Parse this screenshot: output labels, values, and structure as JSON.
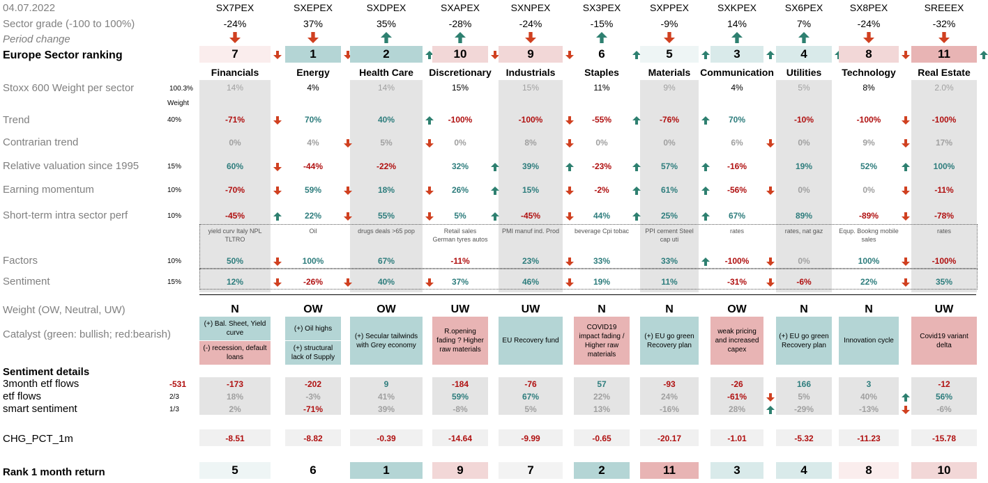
{
  "date": "04.07.2022",
  "labels": {
    "sector_grade": "Sector grade (-100 to 100%)",
    "period_change": "Period change",
    "europe_ranking": "Europe Sector ranking",
    "stoxx_weight": "Stoxx 600 Weight per sector",
    "stoxx_total": "100.3%",
    "weight_hdr": "Weight",
    "trend": "Trend",
    "contrarian": "Contrarian trend",
    "rel_val": "Relative valuation since 1995",
    "earn_mom": "Earning momentum",
    "short_term": "Short-term intra sector perf",
    "factors": "Factors",
    "sentiment": "Sentiment",
    "weight_ow": "Weight (OW, Neutral, UW)",
    "catalyst": "Catalyst (green: bullish; red:bearish)",
    "sent_details": "Sentiment details",
    "etf3m": "3month etf flows",
    "etf3m_total": "-531",
    "etf": "etf flows",
    "etf_w": "2/3",
    "smart": "smart sentiment",
    "smart_w": "1/3",
    "chg": "CHG_PCT_1m",
    "rank1m": "Rank 1 month return"
  },
  "weights": {
    "trend": "40%",
    "rel_val": "15%",
    "earn_mom": "10%",
    "short_term": "10%",
    "factors": "10%",
    "sentiment": "15%"
  },
  "sectors": [
    {
      "code": "SX7PEX",
      "grade": "-24%",
      "chg": "down",
      "rank": "7",
      "rank_arrow": "down",
      "name": "Financials",
      "stoxx": "14%",
      "trend": "-71%",
      "trend_a": "down",
      "contr": "0%",
      "contr_a": "",
      "relval": "60%",
      "relval_a": "down",
      "earn": "-70%",
      "earn_a": "down",
      "short": "-45%",
      "short_a": "up",
      "fact_txt": "yield curv Italy NPL TLTRO",
      "fact": "50%",
      "fact_a": "down",
      "sent": "12%",
      "sent_a": "down",
      "weight": "N",
      "cat_top": "(+) Bal. Sheet, Yield curve",
      "cat_bot": "(-) recession, default loans",
      "etf3m": "-173",
      "etf": "18%",
      "etf_a": "",
      "smart": "2%",
      "smart_a": "",
      "chg1m": "-8.51",
      "rank1m": "5"
    },
    {
      "code": "SXEPEX",
      "grade": "37%",
      "chg": "down",
      "rank": "1",
      "rank_arrow": "",
      "name": "Energy",
      "stoxx": "4%",
      "trend": "70%",
      "trend_a": "",
      "contr": "4%",
      "contr_a": "down",
      "relval": "-44%",
      "relval_a": "",
      "earn": "59%",
      "earn_a": "down",
      "short": "22%",
      "short_a": "down",
      "fact_txt": "Oil",
      "fact": "100%",
      "fact_a": "",
      "sent": "-26%",
      "sent_a": "down",
      "weight": "OW",
      "cat_top": "(+) Oil highs",
      "cat_bot": "(+) structural lack of  Supply",
      "etf3m": "-202",
      "etf": "-3%",
      "etf_a": "",
      "smart": "-71%",
      "smart_a": "",
      "chg1m": "-8.82",
      "rank1m": "6"
    },
    {
      "code": "SXDPEX",
      "grade": "35%",
      "chg": "up",
      "rank": "2",
      "rank_arrow": "",
      "name": "Health Care",
      "stoxx": "14%",
      "trend": "40%",
      "trend_a": "up",
      "contr": "5%",
      "contr_a": "down",
      "relval": "-22%",
      "relval_a": "",
      "earn": "18%",
      "earn_a": "down",
      "short": "55%",
      "short_a": "down",
      "fact_txt": "drugs deals >65 pop",
      "fact": "67%",
      "fact_a": "",
      "sent": "40%",
      "sent_a": "down",
      "weight": "OW",
      "cat_top": "(+) Secular tailwinds with Grey economy",
      "cat_bot": "",
      "etf3m": "9",
      "etf": "41%",
      "etf_a": "",
      "smart": "39%",
      "smart_a": "",
      "chg1m": "-0.39",
      "rank1m": "1"
    },
    {
      "code": "SXAPEX",
      "grade": "-28%",
      "chg": "up",
      "rank": "10",
      "rank_arrow": "",
      "name": "Discretionary",
      "stoxx": "15%",
      "trend": "-100%",
      "trend_a": "",
      "contr": "0%",
      "contr_a": "",
      "relval": "32%",
      "relval_a": "up",
      "earn": "26%",
      "earn_a": "up",
      "short": "5%",
      "short_a": "up",
      "fact_txt": "Retail sales German tyres autos",
      "fact": "-11%",
      "fact_a": "",
      "sent": "37%",
      "sent_a": "",
      "weight": "UW",
      "cat_top": "R.opening fading ? Higher raw materials",
      "cat_bot": "",
      "etf3m": "-184",
      "etf": "59%",
      "etf_a": "",
      "smart": "-8%",
      "smart_a": "",
      "chg1m": "-14.64",
      "rank1m": "9"
    },
    {
      "code": "SXNPEX",
      "grade": "-24%",
      "chg": "down",
      "rank": "9",
      "rank_arrow": "down",
      "name": "Industrials",
      "stoxx": "15%",
      "trend": "-100%",
      "trend_a": "down",
      "contr": "8%",
      "contr_a": "down",
      "relval": "39%",
      "relval_a": "up",
      "earn": "15%",
      "earn_a": "down",
      "short": "-45%",
      "short_a": "down",
      "fact_txt": "PMI manuf   ind. Prod",
      "fact": "23%",
      "fact_a": "down",
      "sent": "46%",
      "sent_a": "down",
      "weight": "UW",
      "cat_top": "EU Recovery fund",
      "cat_bot": "",
      "etf3m": "-76",
      "etf": "67%",
      "etf_a": "",
      "smart": "5%",
      "smart_a": "",
      "chg1m": "-9.99",
      "rank1m": "7"
    },
    {
      "code": "SX3PEX",
      "grade": "-15%",
      "chg": "up",
      "rank": "6",
      "rank_arrow": "up",
      "name": "Staples",
      "stoxx": "11%",
      "trend": "-55%",
      "trend_a": "up",
      "contr": "0%",
      "contr_a": "",
      "relval": "-23%",
      "relval_a": "up",
      "earn": "-2%",
      "earn_a": "up",
      "short": "44%",
      "short_a": "up",
      "fact_txt": "beverage  Cpi tobac",
      "fact": "33%",
      "fact_a": "",
      "sent": "19%",
      "sent_a": "",
      "weight": "N",
      "cat_top": "COVID19 impact fading / Higher raw materials",
      "cat_bot": "",
      "etf3m": "57",
      "etf": "22%",
      "etf_a": "",
      "smart": "13%",
      "smart_a": "",
      "chg1m": "-0.65",
      "rank1m": "2"
    },
    {
      "code": "SXPPEX",
      "grade": "-9%",
      "chg": "down",
      "rank": "5",
      "rank_arrow": "",
      "name": "Materials",
      "stoxx": "9%",
      "trend": "-76%",
      "trend_a": "up",
      "contr": "0%",
      "contr_a": "",
      "relval": "57%",
      "relval_a": "up",
      "earn": "61%",
      "earn_a": "up",
      "short": "25%",
      "short_a": "up",
      "fact_txt": "PPI cement Steel cap uti",
      "fact": "33%",
      "fact_a": "up",
      "sent": "11%",
      "sent_a": "",
      "weight": "N",
      "cat_top": "(+) EU go green Recovery plan",
      "cat_bot": "",
      "etf3m": "-93",
      "etf": "24%",
      "etf_a": "",
      "smart": "-16%",
      "smart_a": "",
      "chg1m": "-20.17",
      "rank1m": "11"
    },
    {
      "code": "SXKPEX",
      "grade": "14%",
      "chg": "up",
      "rank": "3",
      "rank_arrow": "up",
      "name": "Communication",
      "stoxx": "4%",
      "trend": "70%",
      "trend_a": "",
      "contr": "6%",
      "contr_a": "down",
      "relval": "-16%",
      "relval_a": "",
      "earn": "-56%",
      "earn_a": "down",
      "short": "67%",
      "short_a": "",
      "fact_txt": "rates",
      "fact": "-100%",
      "fact_a": "down",
      "sent": "-31%",
      "sent_a": "down",
      "weight": "OW",
      "cat_top": "weak pricing and increased capex",
      "cat_bot": "",
      "etf3m": "-26",
      "etf": "-61%",
      "etf_a": "down",
      "smart": "28%",
      "smart_a": "up",
      "chg1m": "-1.01",
      "rank1m": "3"
    },
    {
      "code": "SX6PEX",
      "grade": "7%",
      "chg": "up",
      "rank": "4",
      "rank_arrow": "",
      "name": "Utilities",
      "stoxx": "5%",
      "trend": "-10%",
      "trend_a": "",
      "contr": "0%",
      "contr_a": "",
      "relval": "19%",
      "relval_a": "",
      "earn": "0%",
      "earn_a": "",
      "short": "89%",
      "short_a": "",
      "fact_txt": "rates,  nat gaz",
      "fact": "0%",
      "fact_a": "",
      "sent": "-6%",
      "sent_a": "",
      "weight": "N",
      "cat_top": "(+) EU go green Recovery plan",
      "cat_bot": "",
      "etf3m": "166",
      "etf": "5%",
      "etf_a": "",
      "smart": "-29%",
      "smart_a": "",
      "chg1m": "-5.32",
      "rank1m": "4"
    },
    {
      "code": "SX8PEX",
      "grade": "-24%",
      "chg": "down",
      "rank": "8",
      "rank_arrow": "down",
      "name": "Technology",
      "stoxx": "8%",
      "trend": "-100%",
      "trend_a": "down",
      "contr": "9%",
      "contr_a": "down",
      "relval": "52%",
      "relval_a": "up",
      "earn": "0%",
      "earn_a": "down",
      "short": "-89%",
      "short_a": "down",
      "fact_txt": "Equp. Bookng mobile sales",
      "fact": "100%",
      "fact_a": "down",
      "sent": "22%",
      "sent_a": "down",
      "weight": "N",
      "cat_top": "Innovation cycle",
      "cat_bot": "",
      "etf3m": "3",
      "etf": "40%",
      "etf_a": "up",
      "smart": "-13%",
      "smart_a": "down",
      "chg1m": "-11.23",
      "rank1m": "8"
    },
    {
      "code": "SREEEX",
      "grade": "-32%",
      "chg": "down",
      "rank": "11",
      "rank_arrow": "",
      "name": "Real Estate",
      "stoxx": "2.0%",
      "trend": "-100%",
      "trend_a": "",
      "contr": "17%",
      "contr_a": "",
      "relval": "100%",
      "relval_a": "",
      "earn": "-11%",
      "earn_a": "",
      "short": "-78%",
      "short_a": "",
      "fact_txt": "rates",
      "fact": "-100%",
      "fact_a": "",
      "sent": "35%",
      "sent_a": "",
      "weight": "UW",
      "cat_top": "Covid19 variant delta",
      "cat_bot": "",
      "etf3m": "-12",
      "etf": "56%",
      "etf_a": "",
      "smart": "-6%",
      "smart_a": "",
      "chg1m": "-15.78",
      "rank1m": "10"
    }
  ],
  "colors": {
    "teal": "#b4d5d5",
    "teal_light": "#d9eaea",
    "teal_pale": "#eef5f5",
    "pink": "#e8b4b4",
    "pink_light": "#f2d7d7",
    "pink_pale": "#faeded",
    "green_text": "#2e7d7d",
    "red_text": "#b01010",
    "grey_text": "#a0a0a0",
    "grey_bg": "#e4e4e4"
  }
}
